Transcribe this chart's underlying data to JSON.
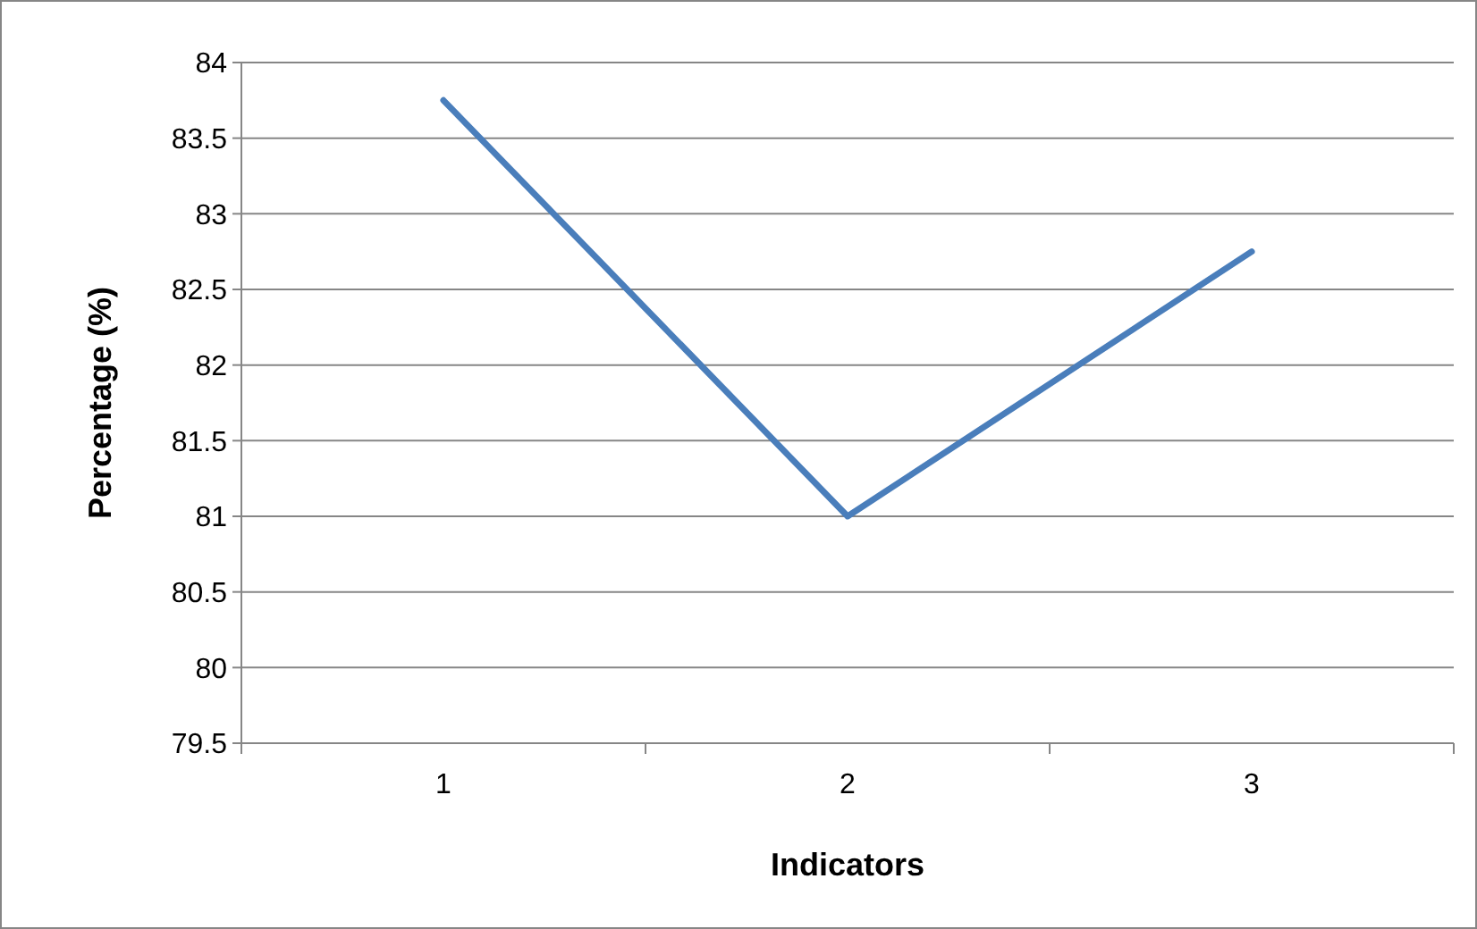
{
  "chart_data": {
    "type": "line",
    "xlabel": "Indicators",
    "ylabel": "Percentage (%)",
    "categories": [
      "1",
      "2",
      "3"
    ],
    "series": [
      {
        "color": "#4a7ebb",
        "values": [
          83.75,
          81,
          82.75
        ]
      }
    ],
    "ylim": [
      79.5,
      84
    ],
    "yticks": [
      79.5,
      80,
      80.5,
      81,
      81.5,
      82,
      82.5,
      83,
      83.5,
      84
    ],
    "grid": "y",
    "marker": "none",
    "line_style": "solid"
  }
}
